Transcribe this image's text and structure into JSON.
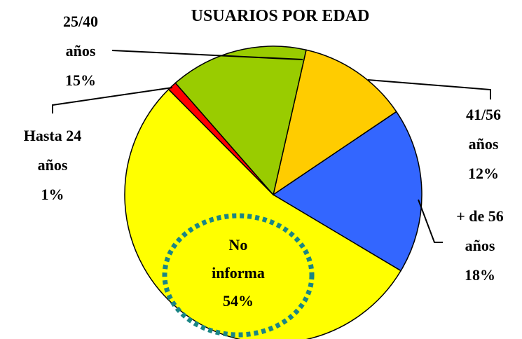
{
  "chart_data": {
    "type": "pie",
    "title": "USUARIOS POR EDAD",
    "categories": [
      "41/56 años",
      "+ de 56 años",
      "No informa",
      "Hasta 24 años",
      "25/40 años"
    ],
    "values": [
      12,
      18,
      54,
      1,
      15
    ],
    "value_labels": [
      "12%",
      "18%",
      "54%",
      "1%",
      "15%"
    ],
    "colors": [
      "#ffcc00",
      "#3366ff",
      "#ffff00",
      "#ff0000",
      "#99cc00"
    ]
  }
}
